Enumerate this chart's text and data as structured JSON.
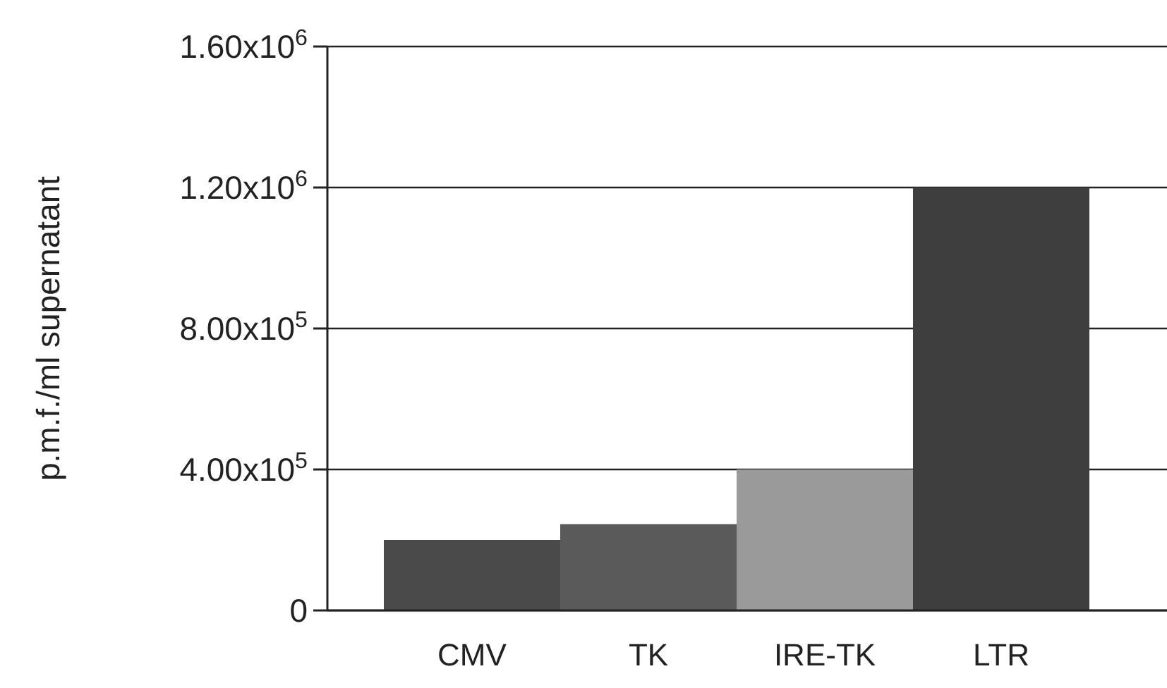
{
  "chart_data": {
    "type": "bar",
    "ylabel": "p.m.f./ml supernatant",
    "categories": [
      "CMV",
      "TK",
      "IRE-TK",
      "LTR"
    ],
    "values": [
      200000,
      245000,
      400000,
      1200000
    ],
    "colors": [
      "#4a4a4a",
      "#5a5a5a",
      "#9a9a9a",
      "#3e3e3e"
    ],
    "ylim": [
      0,
      1600000
    ],
    "yticks": [
      0,
      {
        "value": 400000,
        "label": "4.00x10$^{5}$"
      },
      {
        "value": 800000,
        "label": "8.00x10$^{5}$"
      },
      {
        "value": 1200000,
        "label": "1.20x10$^{6}$"
      },
      {
        "value": 1600000,
        "label": "1.60x10$^{6}$"
      }
    ],
    "grid": "y"
  }
}
